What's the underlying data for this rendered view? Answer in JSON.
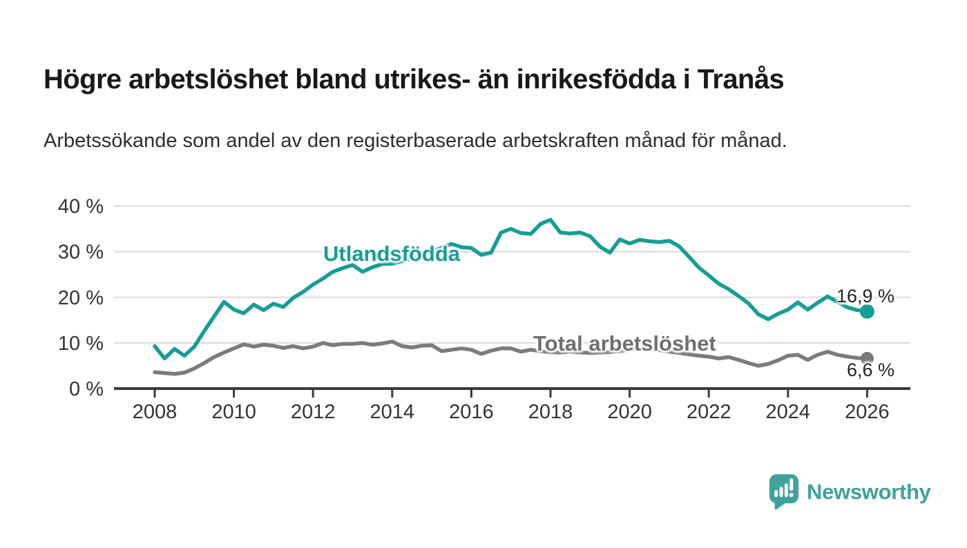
{
  "header": {
    "title": "Högre arbetslöshet bland utrikes- än inrikesfödda i Tranås",
    "subtitle": "Arbetssökande som andel av den registerbaserade arbetskraften månad för månad."
  },
  "chart_data": {
    "type": "line",
    "title": "Högre arbetslöshet bland utrikes- än inrikesfödda i Tranås",
    "subtitle": "Arbetssökande som andel av den registerbaserade arbetskraften månad för månad.",
    "xlabel": "",
    "ylabel": "",
    "ylim": [
      0,
      42
    ],
    "xlim": [
      2007,
      2027
    ],
    "grid": true,
    "legend": "inline-labels",
    "x": [
      2008,
      2008.25,
      2008.5,
      2008.75,
      2009,
      2009.25,
      2009.5,
      2009.75,
      2010,
      2010.25,
      2010.5,
      2010.75,
      2011,
      2011.25,
      2011.5,
      2011.75,
      2012,
      2012.25,
      2012.5,
      2012.75,
      2013,
      2013.25,
      2013.5,
      2013.75,
      2014,
      2014.25,
      2014.5,
      2014.75,
      2015,
      2015.25,
      2015.5,
      2015.75,
      2016,
      2016.25,
      2016.5,
      2016.75,
      2017,
      2017.25,
      2017.5,
      2017.75,
      2018,
      2018.25,
      2018.5,
      2018.75,
      2019,
      2019.25,
      2019.5,
      2019.75,
      2020,
      2020.25,
      2020.5,
      2020.75,
      2021,
      2021.25,
      2021.5,
      2021.75,
      2022,
      2022.25,
      2022.5,
      2022.75,
      2023,
      2023.25,
      2023.5,
      2023.75,
      2024,
      2024.25,
      2024.5,
      2024.75,
      2025,
      2025.25,
      2025.5,
      2025.75,
      2026
    ],
    "series": [
      {
        "name": "Utlandsfödda",
        "color": "#149e95",
        "end_label": "16,9 %",
        "end_value": 16.9,
        "values": [
          9.3,
          6.6,
          8.7,
          7.2,
          9.2,
          12.6,
          15.8,
          19.0,
          17.3,
          16.5,
          18.4,
          17.2,
          18.6,
          17.9,
          19.9,
          21.2,
          22.8,
          24.1,
          25.6,
          26.4,
          27.1,
          25.6,
          26.6,
          27.3,
          27.4,
          27.9,
          28.5,
          29.2,
          30.0,
          30.9,
          31.7,
          31.0,
          30.8,
          29.3,
          29.8,
          34.2,
          35.0,
          34.1,
          33.9,
          36.1,
          37.0,
          34.2,
          34.0,
          34.2,
          33.4,
          31.1,
          29.8,
          32.7,
          31.8,
          32.6,
          32.3,
          32.1,
          32.4,
          31.2,
          28.9,
          26.5,
          24.8,
          23.0,
          21.8,
          20.3,
          18.7,
          16.3,
          15.2,
          16.4,
          17.3,
          18.9,
          17.3,
          18.8,
          20.2,
          19.0,
          17.8,
          17.2,
          16.9
        ]
      },
      {
        "name": "Total arbetslöshet",
        "color": "#7b7b7e",
        "end_label": "6,6 %",
        "end_value": 6.6,
        "values": [
          3.6,
          3.4,
          3.2,
          3.5,
          4.4,
          5.6,
          6.9,
          7.9,
          8.8,
          9.7,
          9.2,
          9.6,
          9.4,
          8.9,
          9.3,
          8.8,
          9.2,
          10.0,
          9.5,
          9.8,
          9.8,
          10.0,
          9.6,
          9.9,
          10.3,
          9.3,
          9.0,
          9.4,
          9.5,
          8.2,
          8.5,
          8.8,
          8.5,
          7.6,
          8.3,
          8.8,
          8.8,
          8.1,
          8.5,
          8.2,
          8.0,
          7.9,
          8.1,
          7.9,
          7.8,
          7.9,
          8.0,
          8.2,
          8.5,
          8.9,
          8.7,
          8.4,
          8.1,
          7.8,
          7.5,
          7.2,
          7.0,
          6.6,
          6.9,
          6.3,
          5.6,
          5.0,
          5.4,
          6.2,
          7.2,
          7.4,
          6.3,
          7.4,
          8.1,
          7.4,
          7.0,
          6.7,
          6.6
        ]
      }
    ],
    "xticks": [
      {
        "v": 2008,
        "label": "2008"
      },
      {
        "v": 2010,
        "label": "2010"
      },
      {
        "v": 2012,
        "label": "2012"
      },
      {
        "v": 2014,
        "label": "2014"
      },
      {
        "v": 2016,
        "label": "2016"
      },
      {
        "v": 2018,
        "label": "2018"
      },
      {
        "v": 2020,
        "label": "2020"
      },
      {
        "v": 2022,
        "label": "2022"
      },
      {
        "v": 2024,
        "label": "2024"
      },
      {
        "v": 2026,
        "label": "2026"
      }
    ],
    "yticks": [
      {
        "v": 0,
        "label": "0 %"
      },
      {
        "v": 10,
        "label": "10 %"
      },
      {
        "v": 20,
        "label": "20 %"
      },
      {
        "v": 30,
        "label": "30 %"
      },
      {
        "v": 40,
        "label": "40 %"
      }
    ],
    "colors": {
      "grid": "#dadada",
      "axis": "#3a3a3a",
      "tick_text": "#333333",
      "end_label_text": "#242424"
    }
  },
  "branding": {
    "logo_text": "Newsworthy",
    "logo_color": "#3fa29b"
  }
}
